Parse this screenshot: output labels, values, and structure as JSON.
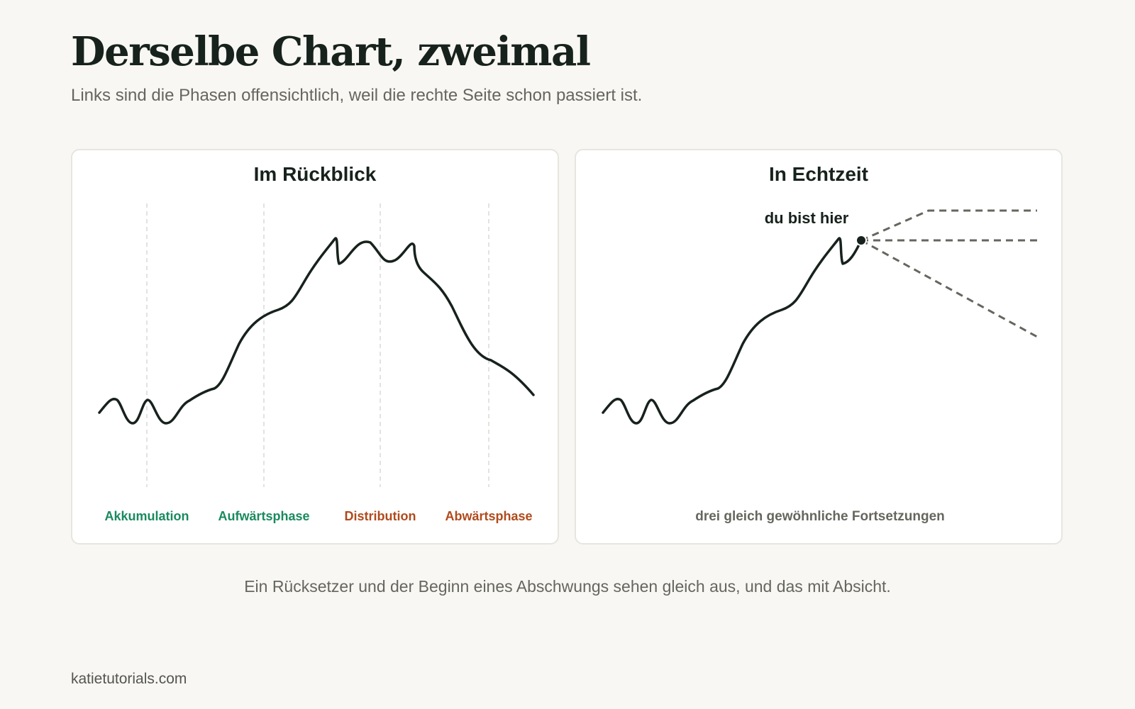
{
  "page": {
    "title": "Derselbe Chart, zweimal",
    "subtitle": "Links sind die Phasen offensichtlich, weil die rechte Seite schon passiert ist.",
    "caption": "Ein Rücksetzer und der Beginn eines Abschwungs sehen gleich aus, und das mit Absicht.",
    "footer": "katietutorials.com"
  },
  "panels": {
    "left": {
      "title": "Im Rückblick",
      "phases": [
        {
          "label": "Akkumulation",
          "color": "#1a8a5e"
        },
        {
          "label": "Aufwärtsphase",
          "color": "#1a8a5e"
        },
        {
          "label": "Distribution",
          "color": "#b04a1c"
        },
        {
          "label": "Abwärtsphase",
          "color": "#b04a1c"
        }
      ]
    },
    "right": {
      "title": "In Echtzeit",
      "marker_label": "du bist hier",
      "note": "drei gleich gewöhnliche Fortsetzungen"
    }
  },
  "colors": {
    "line": "#17221c",
    "projection": "#66665f",
    "divider": "#e2e2df"
  }
}
